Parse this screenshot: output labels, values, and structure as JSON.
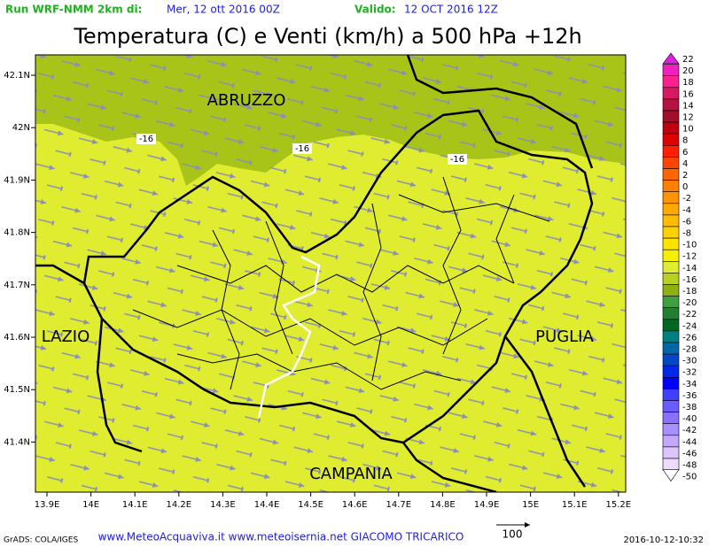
{
  "header": {
    "run_label": "Run WRF-NMM 2km di:",
    "run_date": "Mer, 12 ott 2016 00Z",
    "valid_label": "Valido:",
    "valid_date": "12 OCT 2016 12Z",
    "title": "Temperatura (C) e Venti (km/h) a 500 hPa +12h"
  },
  "map": {
    "lon_ticks": [
      "13.9E",
      "14E",
      "14.1E",
      "14.2E",
      "14.3E",
      "14.4E",
      "14.5E",
      "14.6E",
      "14.7E",
      "14.8E",
      "14.9E",
      "15E",
      "15.1E",
      "15.2E"
    ],
    "lat_ticks": [
      "42.1N",
      "42N",
      "41.9N",
      "41.8N",
      "41.7N",
      "41.6N",
      "41.5N",
      "41.4N"
    ],
    "regions": [
      "ABRUZZO",
      "LAZIO",
      "PUGLIA",
      "CAMPANIA"
    ],
    "contour_labels": [
      "-16",
      "-16",
      "-16"
    ]
  },
  "colorbar": [
    {
      "label": "22",
      "color": "#e020e0"
    },
    {
      "label": "20",
      "color": "#f020c0"
    },
    {
      "label": "18",
      "color": "#ff2090"
    },
    {
      "label": "16",
      "color": "#d81860"
    },
    {
      "label": "14",
      "color": "#b81040"
    },
    {
      "label": "12",
      "color": "#a01028"
    },
    {
      "label": "10",
      "color": "#c00010"
    },
    {
      "label": "8",
      "color": "#e00000"
    },
    {
      "label": "6",
      "color": "#ff2000"
    },
    {
      "label": "4",
      "color": "#ff4400"
    },
    {
      "label": "2",
      "color": "#ff6600"
    },
    {
      "label": "0",
      "color": "#ff8000"
    },
    {
      "label": "-2",
      "color": "#ff9400"
    },
    {
      "label": "-4",
      "color": "#ffa800"
    },
    {
      "label": "-6",
      "color": "#ffbc00"
    },
    {
      "label": "-8",
      "color": "#ffd000"
    },
    {
      "label": "-10",
      "color": "#ffe400"
    },
    {
      "label": "-12",
      "color": "#f4f000"
    },
    {
      "label": "-14",
      "color": "#e0ec30"
    },
    {
      "label": "-16",
      "color": "#b8d020"
    },
    {
      "label": "-18",
      "color": "#90b010"
    },
    {
      "label": "-20",
      "color": "#40a040"
    },
    {
      "label": "-22",
      "color": "#208030"
    },
    {
      "label": "-24",
      "color": "#006820"
    },
    {
      "label": "-26",
      "color": "#008080"
    },
    {
      "label": "-28",
      "color": "#0068a8"
    },
    {
      "label": "-30",
      "color": "#0048c8"
    },
    {
      "label": "-32",
      "color": "#0028e8"
    },
    {
      "label": "-34",
      "color": "#0000ff"
    },
    {
      "label": "-36",
      "color": "#4040ff"
    },
    {
      "label": "-38",
      "color": "#6a5cff"
    },
    {
      "label": "-40",
      "color": "#8a70ff"
    },
    {
      "label": "-42",
      "color": "#a890ff"
    },
    {
      "label": "-44",
      "color": "#c4a8ff"
    },
    {
      "label": "-46",
      "color": "#dcc4ff"
    },
    {
      "label": "-48",
      "color": "#eedcff"
    },
    {
      "label": "-50",
      "color": "#ffffff"
    }
  ],
  "footer": {
    "credit": "GrADS: COLA/IGES",
    "sites": "www.MeteoAcquaviva.it www.meteoisernia.net GIACOMO TRICARICO",
    "vector_scale": "100",
    "timestamp": "2016-10-12-10:32"
  }
}
